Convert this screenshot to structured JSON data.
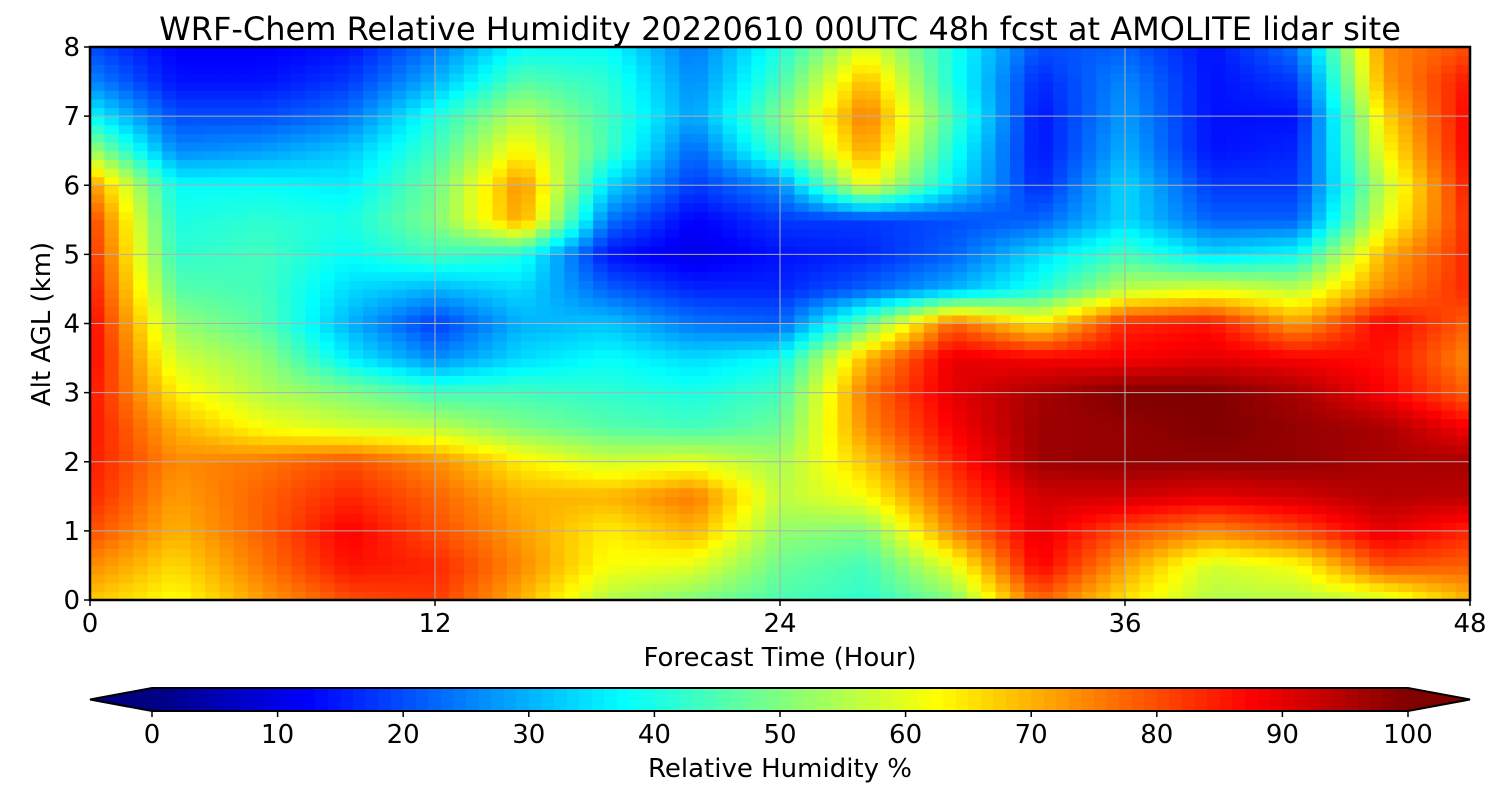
{
  "chart_data": {
    "type": "heatmap",
    "title": "WRF-Chem Relative Humidity 20220610 00UTC 48h fcst at AMOLITE lidar site",
    "xlabel": "Forecast Time (Hour)",
    "ylabel": "Alt AGL (km)",
    "xlim": [
      0,
      48
    ],
    "ylim": [
      0,
      8
    ],
    "x_ticks": [
      "0",
      "12",
      "24",
      "36",
      "48"
    ],
    "y_ticks": [
      "0",
      "1",
      "2",
      "3",
      "4",
      "5",
      "6",
      "7",
      "8"
    ],
    "grid": true,
    "colormap": "jet",
    "colorbar": {
      "label": "Relative Humidity %",
      "range": [
        0,
        100
      ],
      "ticks": [
        "0",
        "10",
        "20",
        "30",
        "40",
        "50",
        "60",
        "70",
        "80",
        "90",
        "100"
      ],
      "extend": "both",
      "orientation": "horizontal",
      "placement": "bottom"
    },
    "x": [
      0,
      3,
      6,
      9,
      12,
      15,
      18,
      21,
      24,
      27,
      30,
      33,
      36,
      39,
      42,
      45,
      48
    ],
    "y": [
      0,
      0.5,
      1,
      1.5,
      2,
      2.5,
      3,
      3.5,
      4,
      4.5,
      5,
      5.5,
      6,
      6.5,
      7,
      7.5,
      8
    ],
    "z": [
      [
        68,
        62,
        72,
        80,
        82,
        70,
        55,
        50,
        45,
        42,
        50,
        78,
        65,
        55,
        55,
        58,
        70
      ],
      [
        74,
        66,
        76,
        86,
        84,
        74,
        62,
        60,
        48,
        44,
        60,
        88,
        72,
        58,
        62,
        80,
        78
      ],
      [
        80,
        70,
        78,
        88,
        80,
        72,
        64,
        70,
        52,
        50,
        74,
        90,
        80,
        74,
        80,
        90,
        84
      ],
      [
        84,
        72,
        78,
        84,
        78,
        70,
        70,
        76,
        56,
        62,
        80,
        92,
        92,
        90,
        92,
        95,
        94
      ],
      [
        85,
        74,
        76,
        80,
        74,
        64,
        58,
        60,
        54,
        68,
        84,
        97,
        98,
        98,
        98,
        96,
        96
      ],
      [
        86,
        70,
        62,
        58,
        56,
        50,
        46,
        44,
        48,
        74,
        88,
        97,
        98,
        100,
        98,
        96,
        88
      ],
      [
        86,
        64,
        55,
        50,
        44,
        44,
        42,
        40,
        44,
        76,
        90,
        96,
        100,
        100,
        96,
        88,
        78
      ],
      [
        88,
        58,
        52,
        36,
        26,
        34,
        38,
        34,
        38,
        70,
        90,
        88,
        88,
        90,
        88,
        86,
        74
      ],
      [
        88,
        52,
        46,
        30,
        18,
        30,
        32,
        24,
        22,
        48,
        78,
        64,
        84,
        86,
        72,
        88,
        78
      ],
      [
        86,
        46,
        44,
        34,
        30,
        34,
        22,
        16,
        16,
        22,
        30,
        40,
        56,
        60,
        56,
        74,
        84
      ],
      [
        84,
        42,
        44,
        38,
        44,
        40,
        14,
        10,
        14,
        16,
        22,
        34,
        44,
        34,
        38,
        70,
        84
      ],
      [
        82,
        40,
        42,
        40,
        50,
        72,
        24,
        12,
        18,
        18,
        20,
        22,
        34,
        22,
        22,
        60,
        84
      ],
      [
        74,
        38,
        38,
        36,
        48,
        74,
        34,
        18,
        26,
        62,
        36,
        16,
        34,
        18,
        18,
        56,
        86
      ],
      [
        54,
        26,
        28,
        32,
        44,
        64,
        44,
        22,
        44,
        72,
        40,
        14,
        30,
        14,
        16,
        62,
        88
      ],
      [
        38,
        20,
        20,
        24,
        40,
        56,
        44,
        28,
        50,
        76,
        44,
        14,
        28,
        14,
        14,
        66,
        88
      ],
      [
        26,
        14,
        14,
        18,
        30,
        46,
        42,
        26,
        44,
        70,
        40,
        16,
        26,
        14,
        18,
        72,
        86
      ],
      [
        20,
        12,
        12,
        14,
        24,
        38,
        38,
        24,
        40,
        60,
        40,
        20,
        22,
        14,
        24,
        74,
        80
      ]
    ]
  }
}
